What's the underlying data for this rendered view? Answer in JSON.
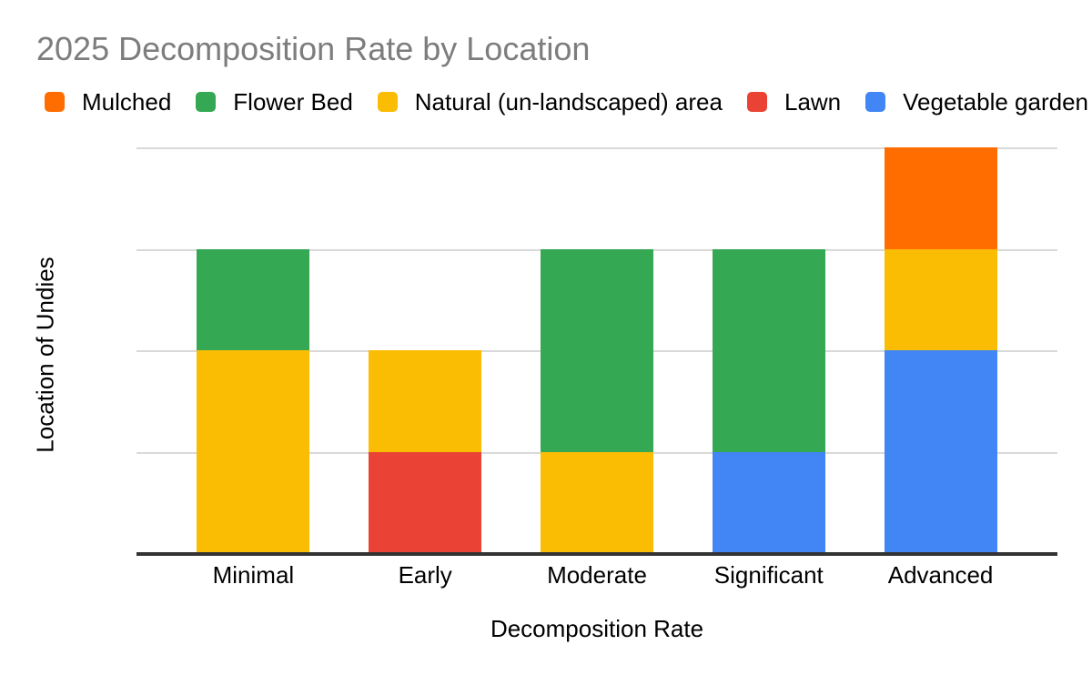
{
  "title": "2025 Decomposition Rate by Location",
  "legend": [
    {
      "label": "Mulched",
      "color": "#FF6D01"
    },
    {
      "label": "Flower Bed",
      "color": "#34A853"
    },
    {
      "label": "Natural (un-landscaped) area",
      "color": "#FBBC04"
    },
    {
      "label": "Lawn",
      "color": "#EA4335"
    },
    {
      "label": "Vegetable garden",
      "color": "#4285F4"
    }
  ],
  "axes": {
    "x_title": "Decomposition Rate",
    "y_title": "Location of Undies"
  },
  "colors": {
    "title_text": "#7d7d7d",
    "axis_text": "#000000",
    "gridline": "#d9d9d9",
    "axis_line": "#333333",
    "background": "#ffffff"
  },
  "chart_data": {
    "type": "bar",
    "stacked": true,
    "title": "2025 Decomposition Rate by Location",
    "xlabel": "Decomposition Rate",
    "ylabel": "Location of Undies",
    "categories": [
      "Minimal",
      "Early",
      "Moderate",
      "Significant",
      "Advanced"
    ],
    "series": [
      {
        "name": "Vegetable garden",
        "color": "#4285F4",
        "values": [
          0,
          0,
          0,
          1,
          2
        ]
      },
      {
        "name": "Lawn",
        "color": "#EA4335",
        "values": [
          0,
          1,
          0,
          0,
          0
        ]
      },
      {
        "name": "Natural (un-landscaped) area",
        "color": "#FBBC04",
        "values": [
          2,
          1,
          1,
          0,
          1
        ]
      },
      {
        "name": "Flower Bed",
        "color": "#34A853",
        "values": [
          1,
          0,
          2,
          2,
          0
        ]
      },
      {
        "name": "Mulched",
        "color": "#FF6D01",
        "values": [
          0,
          0,
          0,
          0,
          1
        ]
      }
    ],
    "totals": {
      "Minimal": 3,
      "Early": 2,
      "Moderate": 3,
      "Significant": 3,
      "Advanced": 4
    },
    "ylim": [
      0,
      4
    ],
    "y_tick_interval": 1,
    "y_tick_labels_visible": false,
    "gridlines": true,
    "legend_position": "top"
  }
}
